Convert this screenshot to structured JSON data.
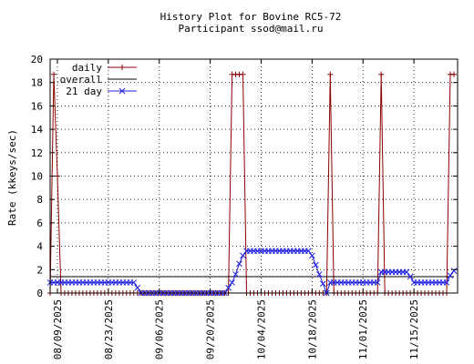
{
  "chart_data": {
    "type": "line",
    "title": "History Plot for Bovine RC5-72",
    "subtitle": "Participant ssod@mail.ru",
    "xlabel": "",
    "ylabel": "Rate (kkeys/sec)",
    "xlim": [
      "2025-08-07",
      "2025-11-27"
    ],
    "ylim": [
      0,
      20
    ],
    "yticks": [
      0,
      2,
      4,
      6,
      8,
      10,
      12,
      14,
      16,
      18,
      20
    ],
    "xticks": [
      "08/09/2025",
      "08/23/2025",
      "09/06/2025",
      "09/20/2025",
      "10/04/2025",
      "10/18/2025",
      "11/01/2025",
      "11/15/2025"
    ],
    "grid": true,
    "legend_position": "top-left",
    "series": [
      {
        "name": "daily",
        "color": "#8b0000",
        "marker": "plus",
        "points": [
          [
            "2025-08-07",
            0
          ],
          [
            "2025-08-08",
            18.7
          ],
          [
            "2025-08-09",
            10
          ],
          [
            "2025-08-10",
            0
          ],
          [
            "2025-09-25",
            0
          ],
          [
            "2025-09-26",
            18.7
          ],
          [
            "2025-09-27",
            18.7
          ],
          [
            "2025-09-28",
            18.7
          ],
          [
            "2025-09-29",
            18.7
          ],
          [
            "2025-09-30",
            0
          ],
          [
            "2025-10-22",
            0
          ],
          [
            "2025-10-23",
            18.7
          ],
          [
            "2025-10-24",
            0
          ],
          [
            "2025-11-05",
            0
          ],
          [
            "2025-11-06",
            18.7
          ],
          [
            "2025-11-07",
            0
          ],
          [
            "2025-11-24",
            0
          ],
          [
            "2025-11-25",
            18.7
          ],
          [
            "2025-11-26",
            18.7
          ]
        ]
      },
      {
        "name": "overall",
        "color": "#000000",
        "marker": "none",
        "points": [
          [
            "2025-08-07",
            1.4
          ],
          [
            "2025-11-26",
            1.4
          ]
        ]
      },
      {
        "name": "21 day",
        "color": "#2020e0",
        "marker": "cross",
        "points": [
          [
            "2025-08-07",
            0.9
          ],
          [
            "2025-08-08",
            0.9
          ],
          [
            "2025-08-29",
            0.9
          ],
          [
            "2025-08-30",
            0.9
          ],
          [
            "2025-08-31",
            0.45
          ],
          [
            "2025-09-01",
            0
          ],
          [
            "2025-09-24",
            0
          ],
          [
            "2025-09-25",
            0.45
          ],
          [
            "2025-09-26",
            0.9
          ],
          [
            "2025-09-27",
            1.6
          ],
          [
            "2025-09-28",
            2.5
          ],
          [
            "2025-09-29",
            3.2
          ],
          [
            "2025-09-30",
            3.6
          ],
          [
            "2025-10-17",
            3.6
          ],
          [
            "2025-10-18",
            3.2
          ],
          [
            "2025-10-19",
            2.4
          ],
          [
            "2025-10-20",
            1.6
          ],
          [
            "2025-10-21",
            0.8
          ],
          [
            "2025-10-22",
            0
          ],
          [
            "2025-10-23",
            0.9
          ],
          [
            "2025-11-04",
            0.9
          ],
          [
            "2025-11-05",
            0.9
          ],
          [
            "2025-11-06",
            1.8
          ],
          [
            "2025-11-13",
            1.8
          ],
          [
            "2025-11-14",
            1.4
          ],
          [
            "2025-11-15",
            0.9
          ],
          [
            "2025-11-24",
            0.9
          ],
          [
            "2025-11-25",
            1.5
          ],
          [
            "2025-11-26",
            1.9
          ]
        ]
      }
    ]
  }
}
